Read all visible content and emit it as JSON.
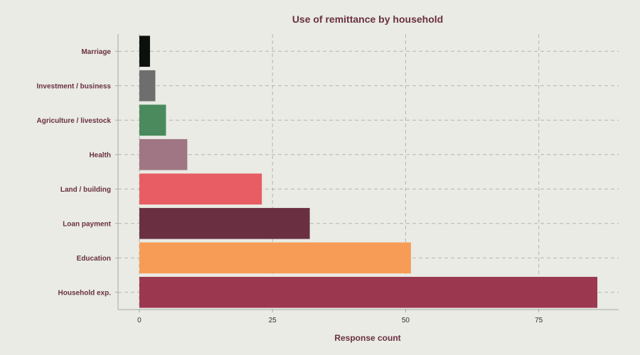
{
  "chart_data": {
    "type": "bar",
    "orientation": "horizontal",
    "title": "Use of remittance by household",
    "xlabel": "Response count",
    "ylabel": "",
    "categories": [
      "Household exp.",
      "Education",
      "Loan payment",
      "Land / building",
      "Health",
      "Agriculture / livestock",
      "Investment / business",
      "Marriage"
    ],
    "values": [
      86,
      51,
      32,
      23,
      9,
      5,
      3,
      2
    ],
    "colors": [
      "#9b3850",
      "#f79c57",
      "#6a3042",
      "#e85d63",
      "#a07685",
      "#4a8a5c",
      "#6e6e6e",
      "#0b100d"
    ],
    "xlim": [
      -4,
      90
    ],
    "xticks": [
      0,
      25,
      50,
      75
    ],
    "xtick_labels": [
      "0",
      "25",
      "50",
      "75"
    ],
    "grid": true,
    "legend": "none"
  }
}
